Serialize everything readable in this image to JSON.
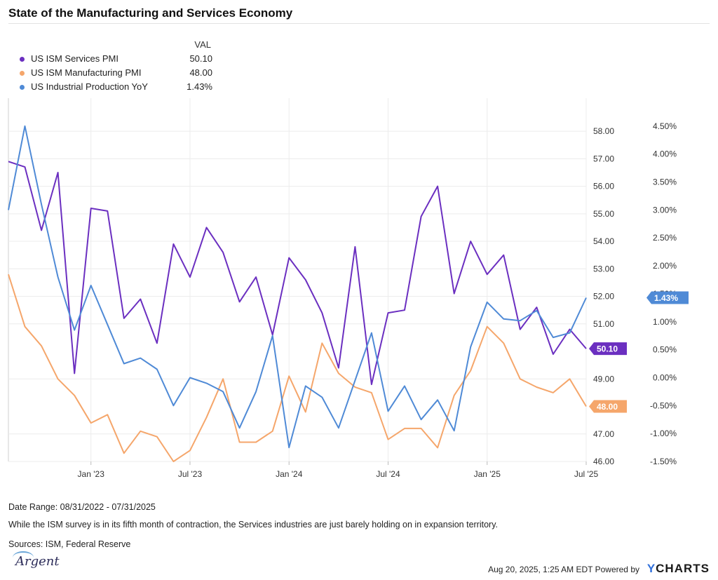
{
  "title": "State of the Manufacturing and Services Economy",
  "legend": {
    "value_header": "VAL",
    "items": [
      {
        "name": "US ISM Services PMI",
        "value": "50.10",
        "color": "#6b2fc0"
      },
      {
        "name": "US ISM Manufacturing PMI",
        "value": "48.00",
        "color": "#f5a66b"
      },
      {
        "name": "US Industrial Production YoY",
        "value": "1.43%",
        "color": "#4f8ad6"
      }
    ]
  },
  "chart_data": {
    "type": "line",
    "x": [
      "2022-08",
      "2022-09",
      "2022-10",
      "2022-11",
      "2022-12",
      "2023-01",
      "2023-02",
      "2023-03",
      "2023-04",
      "2023-05",
      "2023-06",
      "2023-07",
      "2023-08",
      "2023-09",
      "2023-10",
      "2023-11",
      "2023-12",
      "2024-01",
      "2024-02",
      "2024-03",
      "2024-04",
      "2024-05",
      "2024-06",
      "2024-07",
      "2024-08",
      "2024-09",
      "2024-10",
      "2024-11",
      "2024-12",
      "2025-01",
      "2025-02",
      "2025-03",
      "2025-04",
      "2025-05",
      "2025-06",
      "2025-07"
    ],
    "x_tick_labels": [
      "Jan '23",
      "Jul '23",
      "Jan '24",
      "Jul '24",
      "Jan '25",
      "Jul '25"
    ],
    "x_tick_dates": [
      "2023-01",
      "2023-07",
      "2024-01",
      "2024-07",
      "2025-01",
      "2025-07"
    ],
    "left_axis": {
      "ticks": [
        "58.00",
        "57.00",
        "56.00",
        "55.00",
        "54.00",
        "53.00",
        "52.00",
        "51.00",
        "49.00",
        "47.00",
        "46.00"
      ],
      "range": [
        46,
        59.2
      ]
    },
    "right_axis": {
      "ticks": [
        "4.50%",
        "4.00%",
        "3.50%",
        "3.00%",
        "2.50%",
        "2.00%",
        "1.50%",
        "1.00%",
        "0.50%",
        "0.00%",
        "-0.50%",
        "-1.00%",
        "-1.50%"
      ],
      "range": [
        -1.5,
        5.0
      ]
    },
    "series": [
      {
        "name": "US ISM Services PMI",
        "axis": "left",
        "color": "#6b2fc0",
        "end_label": "50.10",
        "values": [
          56.9,
          56.7,
          54.4,
          56.5,
          49.2,
          55.2,
          55.1,
          51.2,
          51.9,
          50.3,
          53.9,
          52.7,
          54.5,
          53.6,
          51.8,
          52.7,
          50.6,
          53.4,
          52.6,
          51.4,
          49.4,
          53.8,
          48.8,
          51.4,
          51.5,
          54.9,
          56.0,
          52.1,
          54.0,
          52.8,
          53.5,
          50.8,
          51.6,
          49.9,
          50.8,
          50.1
        ]
      },
      {
        "name": "US ISM Manufacturing PMI",
        "axis": "left",
        "color": "#f5a66b",
        "end_label": "48.00",
        "values": [
          52.8,
          50.9,
          50.2,
          49.0,
          48.4,
          47.4,
          47.7,
          46.3,
          47.1,
          46.9,
          46.0,
          46.4,
          47.6,
          49.0,
          46.7,
          46.7,
          47.1,
          49.1,
          47.8,
          50.3,
          49.2,
          48.7,
          48.5,
          46.8,
          47.2,
          47.2,
          46.5,
          48.4,
          49.3,
          50.9,
          50.3,
          49.0,
          48.7,
          48.5,
          49.0,
          48.0
        ]
      },
      {
        "name": "US Industrial Production YoY",
        "axis": "right",
        "color": "#4f8ad6",
        "end_label": "1.43%",
        "values": [
          3.0,
          4.5,
          3.1,
          1.8,
          0.85,
          1.65,
          0.95,
          0.25,
          0.35,
          0.15,
          -0.5,
          0.0,
          -0.1,
          -0.25,
          -0.9,
          -0.25,
          0.75,
          -1.25,
          -0.15,
          -0.35,
          -0.9,
          -0.05,
          0.8,
          -0.6,
          -0.15,
          -0.75,
          -0.4,
          -0.95,
          0.55,
          1.35,
          1.05,
          1.02,
          1.2,
          0.72,
          0.8,
          1.43
        ]
      }
    ]
  },
  "footer": {
    "date_range": "Date Range: 08/31/2022 - 07/31/2025",
    "note": "While the ISM survey is in its fifth month of contraction, the Services industries are just barely holding on in expansion territory.",
    "sources": "Sources: ISM, Federal Reserve",
    "logo": "Argent",
    "timestamp": "Aug 20, 2025, 1:25 AM EDT Powered by",
    "brand_y": "Y",
    "brand_rest": "CHARTS"
  }
}
